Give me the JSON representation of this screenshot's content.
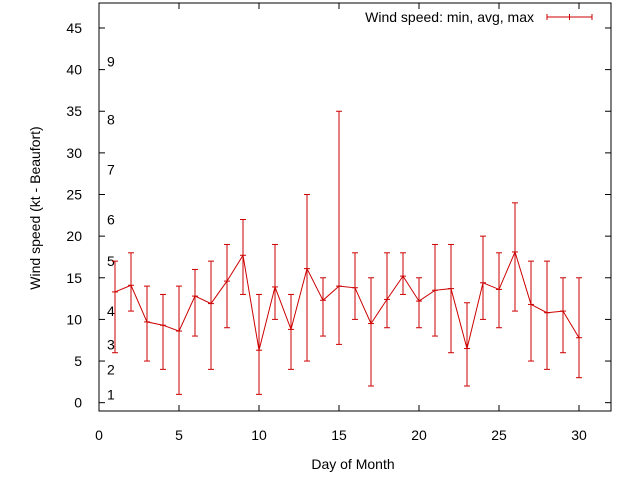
{
  "chart_data": {
    "type": "line",
    "title": "",
    "xlabel": "Day of Month",
    "ylabel": "Wind speed (kt - Beaufort)",
    "xlim": [
      0,
      32
    ],
    "ylim": [
      -1,
      48
    ],
    "x_ticks": [
      "0",
      "5",
      "10",
      "15",
      "20",
      "25",
      "30"
    ],
    "y_ticks": [
      "0",
      "5",
      "10",
      "15",
      "20",
      "25",
      "30",
      "35",
      "40",
      "45"
    ],
    "beaufort_labels": [
      {
        "label": "1",
        "y": 1
      },
      {
        "label": "2",
        "y": 4
      },
      {
        "label": "3",
        "y": 7
      },
      {
        "label": "4",
        "y": 11
      },
      {
        "label": "5",
        "y": 17
      },
      {
        "label": "6",
        "y": 22
      },
      {
        "label": "7",
        "y": 28
      },
      {
        "label": "8",
        "y": 34
      },
      {
        "label": "9",
        "y": 41
      }
    ],
    "grid": false,
    "legend_position": "top-right",
    "series": [
      {
        "name": "Wind speed: min, avg, max",
        "color": "#cc0000",
        "x": [
          1,
          2,
          3,
          4,
          5,
          6,
          7,
          8,
          9,
          10,
          11,
          12,
          13,
          14,
          15,
          16,
          17,
          18,
          19,
          20,
          21,
          22,
          23,
          24,
          25,
          26,
          27,
          28,
          29,
          30
        ],
        "avg": [
          13.3,
          14.1,
          9.7,
          9.3,
          8.6,
          12.8,
          11.9,
          14.6,
          17.7,
          6.3,
          13.9,
          8.8,
          16.1,
          12.3,
          14,
          13.8,
          9.5,
          12.4,
          15.2,
          12.2,
          13.5,
          13.7,
          6.5,
          14.4,
          13.6,
          18.1,
          11.8,
          10.8,
          11,
          7.8
        ],
        "min": [
          6,
          11,
          5,
          4,
          1,
          8,
          4,
          9,
          13,
          1,
          10,
          4,
          5,
          8,
          7,
          10,
          2,
          9,
          13,
          9,
          8,
          6,
          2,
          10,
          9,
          11,
          5,
          4,
          6,
          3
        ],
        "max": [
          17,
          18,
          14,
          13,
          14,
          16,
          17,
          19,
          22,
          13,
          19,
          13,
          25,
          15,
          35,
          18,
          15,
          18,
          18,
          15,
          19,
          19,
          12,
          20,
          18,
          24,
          17,
          17,
          15,
          15
        ]
      }
    ]
  }
}
